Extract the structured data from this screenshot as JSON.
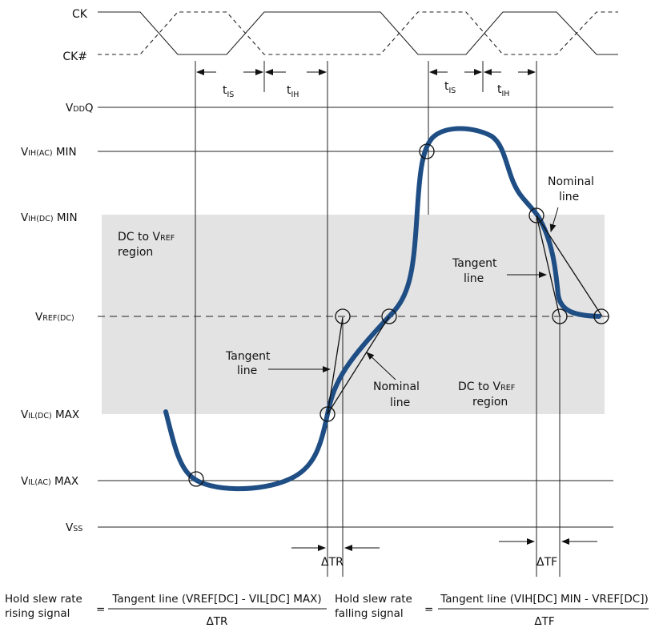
{
  "signals": {
    "ck": "CK",
    "ck_bar": "CK#"
  },
  "timing": {
    "t_is": {
      "t": "t",
      "sub": "IS"
    },
    "t_ih": {
      "t": "t",
      "sub": "IH"
    }
  },
  "levels": {
    "vddq": {
      "main": "V",
      "sub": "DD",
      "tail": "Q"
    },
    "vih_ac": {
      "main": "V",
      "sub": "IH(AC)",
      "tail": " MIN"
    },
    "vih_dc": {
      "main": "V",
      "sub": "IH(DC)",
      "tail": " MIN"
    },
    "vref_dc": {
      "main": "V",
      "sub": "REF(DC)",
      "tail": ""
    },
    "vil_dc": {
      "main": "V",
      "sub": "IL(DC)",
      "tail": " MAX"
    },
    "vil_ac": {
      "main": "V",
      "sub": "IL(AC)",
      "tail": " MAX"
    },
    "vss": {
      "main": "V",
      "sub": "SS",
      "tail": ""
    }
  },
  "regions": {
    "upper": {
      "line1_pre": "DC to V",
      "line1_sub": "REF",
      "line2": "region"
    },
    "lower": {
      "line1_pre": "DC to V",
      "line1_sub": "REF",
      "line2": "region"
    }
  },
  "annotations": {
    "nominal_line_top": {
      "l1": "Nominal",
      "l2": "line"
    },
    "tangent_line_right": {
      "l1": "Tangent",
      "l2": "line"
    },
    "tangent_line_left": {
      "l1": "Tangent",
      "l2": "line"
    },
    "nominal_line_bottom": {
      "l1": "Nominal",
      "l2": "line"
    }
  },
  "deltas": {
    "tr": "ΔTR",
    "tf": "ΔTF"
  },
  "formulas": {
    "rising": {
      "l1": "Hold slew rate",
      "l2": "rising signal",
      "eq": "=",
      "numerator": "Tangent line (VREF[DC] - VIL[DC] MAX)",
      "denominator": "ΔTR"
    },
    "falling": {
      "l1": "Hold slew rate",
      "l2": "falling signal",
      "eq": "=",
      "numerator": "Tangent line (VIH[DC] MIN - VREF[DC])",
      "denominator": "ΔTF"
    }
  },
  "colors": {
    "signal": "#1f4e85",
    "region": "#e3e3e3",
    "lines": "#222222"
  }
}
